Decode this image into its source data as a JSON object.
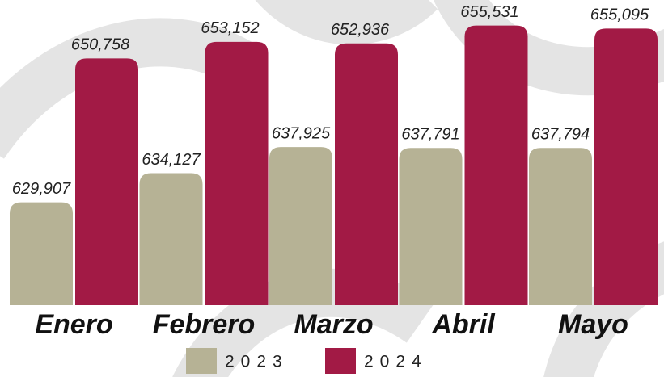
{
  "chart_data": {
    "type": "bar",
    "categories": [
      "Enero",
      "Febrero",
      "Marzo",
      "Abril",
      "Mayo"
    ],
    "series": [
      {
        "name": "2023",
        "color": "#b6b295",
        "values": [
          629907,
          634127,
          637925,
          637791,
          637794
        ],
        "value_labels": [
          "629,907",
          "634,127",
          "637,925",
          "637,791",
          "637,794"
        ]
      },
      {
        "name": "2024",
        "color": "#a21a45",
        "values": [
          650758,
          653152,
          652936,
          655531,
          655095
        ],
        "value_labels": [
          "650,758",
          "653,152",
          "652,936",
          "655,531",
          "655,095"
        ]
      }
    ],
    "ylim": [
      615000,
      658000
    ]
  }
}
